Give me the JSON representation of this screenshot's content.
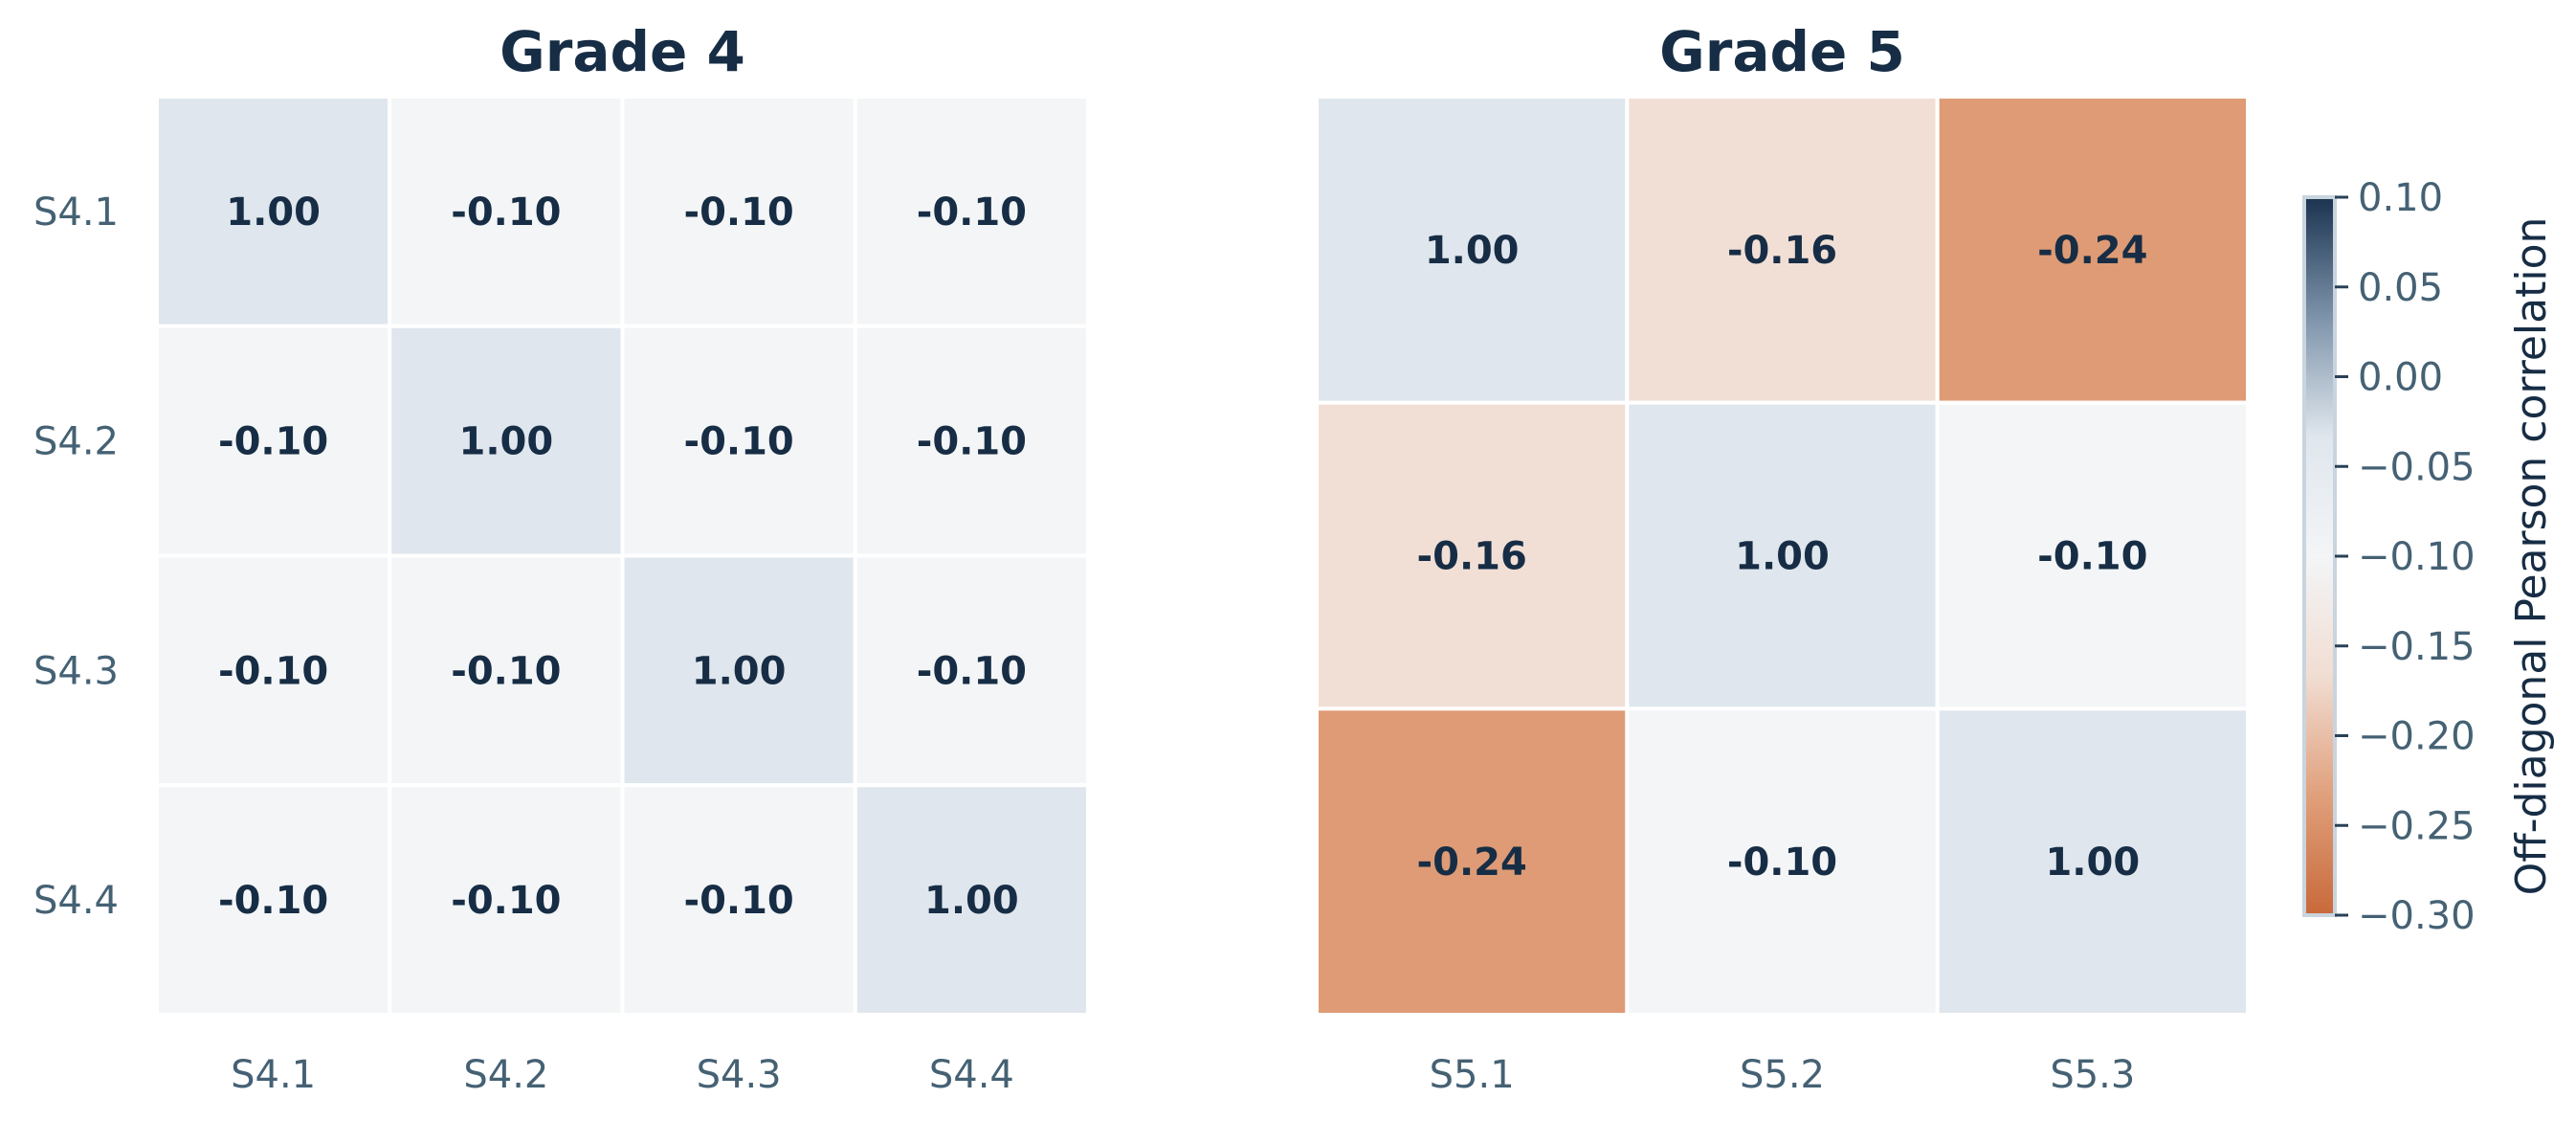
{
  "chart_data": [
    {
      "type": "heatmap",
      "title": "Grade 4",
      "rows": [
        "S4.1",
        "S4.2",
        "S4.3",
        "S4.4"
      ],
      "columns": [
        "S4.1",
        "S4.2",
        "S4.3",
        "S4.4"
      ],
      "values": [
        [
          1.0,
          -0.1,
          -0.1,
          -0.1
        ],
        [
          -0.1,
          1.0,
          -0.1,
          -0.1
        ],
        [
          -0.1,
          -0.1,
          1.0,
          -0.1
        ],
        [
          -0.1,
          -0.1,
          -0.1,
          1.0
        ]
      ],
      "cell_labels": [
        [
          "1.00",
          "-0.10",
          "-0.10",
          "-0.10"
        ],
        [
          "-0.10",
          "1.00",
          "-0.10",
          "-0.10"
        ],
        [
          "-0.10",
          "-0.10",
          "1.00",
          "-0.10"
        ],
        [
          "-0.10",
          "-0.10",
          "-0.10",
          "1.00"
        ]
      ],
      "grid": false
    },
    {
      "type": "heatmap",
      "title": "Grade 5",
      "rows": [
        "",
        "",
        ""
      ],
      "columns": [
        "S5.1",
        "S5.2",
        "S5.3"
      ],
      "values": [
        [
          1.0,
          -0.16,
          -0.24
        ],
        [
          -0.16,
          1.0,
          -0.1
        ],
        [
          -0.24,
          -0.1,
          1.0
        ]
      ],
      "cell_labels": [
        [
          "1.00",
          "-0.16",
          "-0.24"
        ],
        [
          "-0.16",
          "1.00",
          "-0.10"
        ],
        [
          "-0.24",
          "-0.10",
          "1.00"
        ]
      ],
      "grid": false
    }
  ],
  "colorbar": {
    "label": "Off-diagonal Pearson correlation",
    "range": [
      -0.3,
      0.1
    ],
    "ticks": [
      "0.10",
      "0.05",
      "0.00",
      "−0.05",
      "−0.10",
      "−0.15",
      "−0.20",
      "−0.25",
      "−0.30"
    ],
    "tick_values": [
      0.1,
      0.05,
      0.0,
      -0.05,
      -0.1,
      -0.15,
      -0.2,
      -0.25,
      -0.3
    ],
    "colors": [
      "#c8693a",
      "#e0a07c",
      "#f1ddd2",
      "#f3f5f7",
      "#dfe6ed",
      "#7d93aa",
      "#1b3350"
    ]
  },
  "colors": {
    "diagonal_cell": "#dfe6ed",
    "text_dark": "#172d45",
    "tick_text": "#456174"
  }
}
